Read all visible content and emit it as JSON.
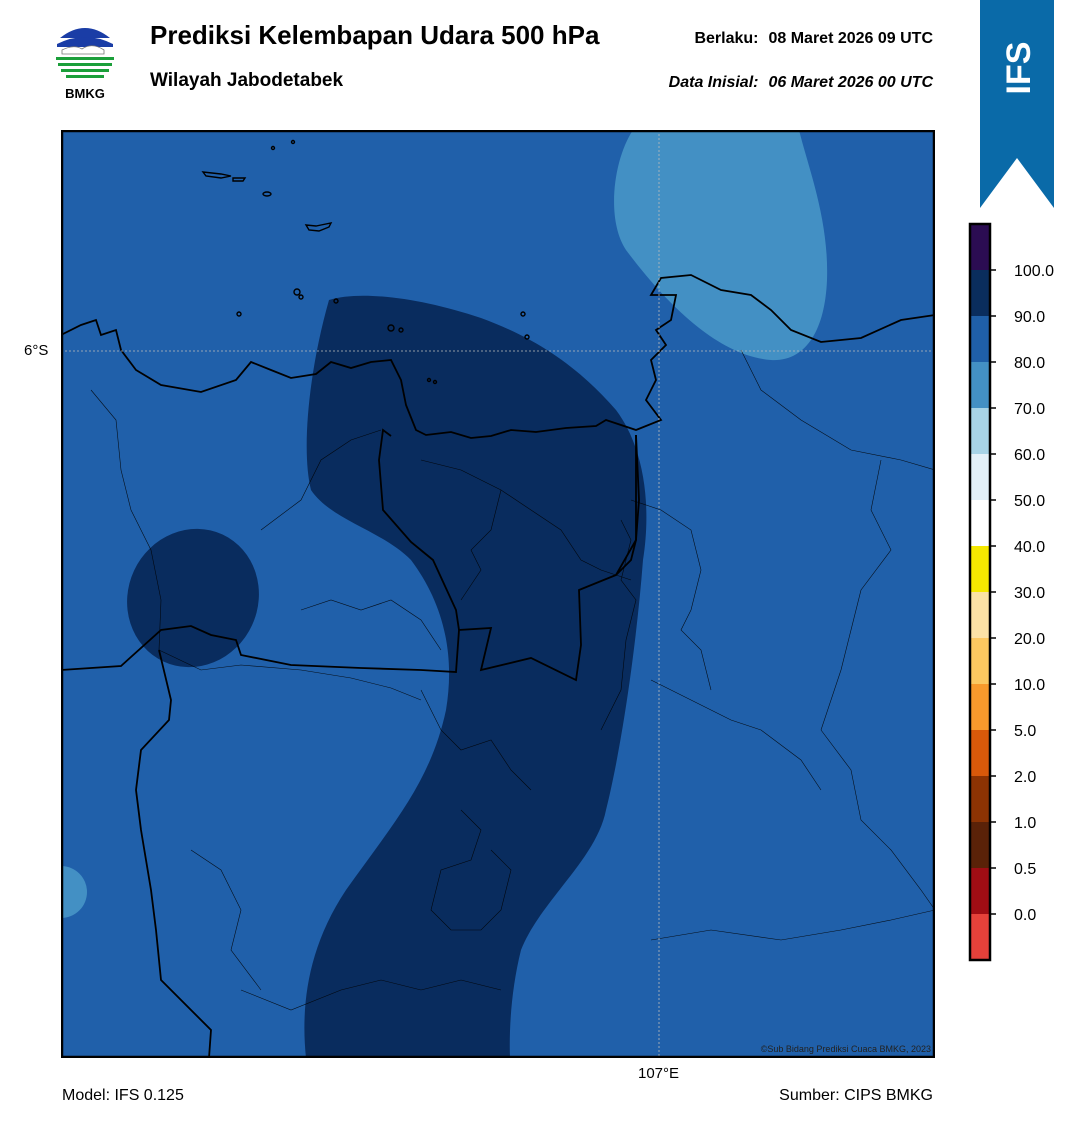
{
  "header": {
    "logo_text": "BMKG",
    "title": "Prediksi Kelembapan Udara 500 hPa",
    "subtitle": "Wilayah Jabodetabek",
    "valid_label": "Berlaku:",
    "valid_time": "08 Maret 2026 09 UTC",
    "init_label": "Data Inisial:",
    "init_time": "06 Maret 2026 00 UTC"
  },
  "badge": {
    "text": "IFS",
    "color": "#0a6aa8"
  },
  "map": {
    "lat_label": "6°S",
    "lon_label": "107°E",
    "copyright": "©Sub Bidang Prediksi Cuaca BMKG, 2023"
  },
  "colorbar": {
    "tick_labels": [
      "100.0",
      "90.0",
      "80.0",
      "70.0",
      "60.0",
      "50.0",
      "40.0",
      "30.0",
      "20.0",
      "10.0",
      "5.0",
      "2.0",
      "1.0",
      "0.5",
      "0.0"
    ],
    "colors_top_to_bottom": [
      "#2b0c52",
      "#0a2d5d",
      "#1f5fa8",
      "#4390c4",
      "#a7d3e6",
      "#e3f0f8",
      "#ffffff",
      "#f5e800",
      "#fbe2a5",
      "#fbc860",
      "#f89a2c",
      "#d9590a",
      "#8c3303",
      "#5a2208",
      "#a00d14",
      "#e5413a"
    ]
  },
  "footer": {
    "model": "Model: IFS 0.125",
    "source": "Sumber: CIPS BMKG"
  }
}
